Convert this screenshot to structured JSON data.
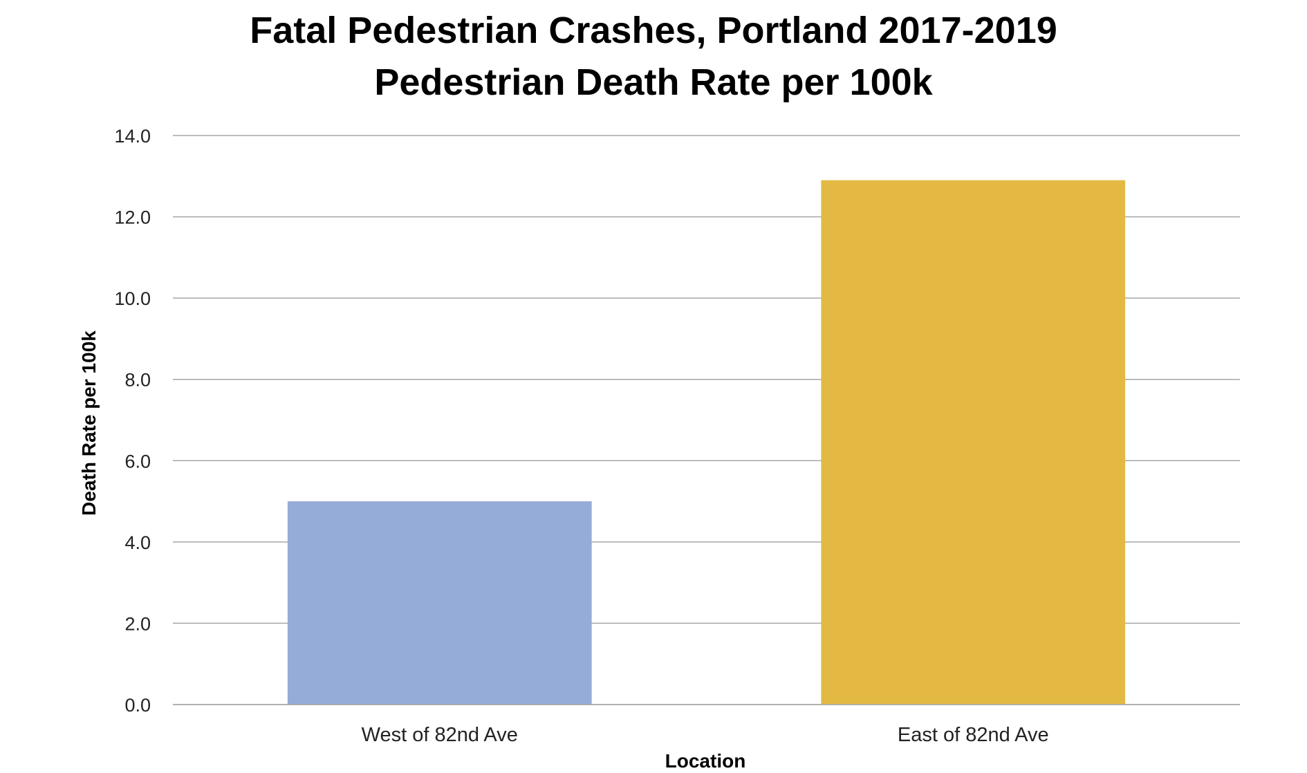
{
  "chart_data": {
    "type": "bar",
    "title": "Fatal Pedestrian Crashes, Portland 2017-2019",
    "subtitle": "Pedestrian Death Rate per 100k",
    "xlabel": "Location",
    "ylabel": "Death Rate per 100k",
    "categories": [
      "West of 82nd Ave",
      "East of 82nd Ave"
    ],
    "values": [
      5.0,
      12.9
    ],
    "bar_colors": [
      "#95abd8",
      "#e3b944"
    ],
    "ylim": [
      0,
      14
    ],
    "yticks": [
      "0.0",
      "2.0",
      "4.0",
      "6.0",
      "8.0",
      "10.0",
      "12.0",
      "14.0"
    ],
    "grid": true,
    "legend": "none"
  }
}
